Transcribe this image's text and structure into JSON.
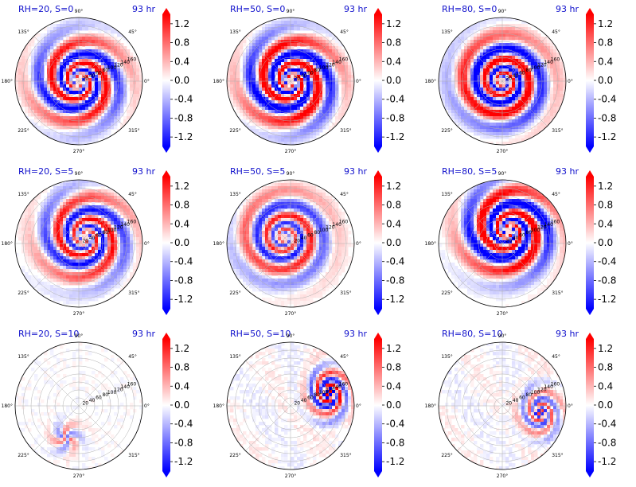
{
  "chart_data": {
    "type": "heatmap",
    "projection": "polar",
    "time_label": "93 hr",
    "angle_ticks": [
      "0°",
      "45°",
      "90°",
      "135°",
      "180°",
      "225°",
      "270°",
      "315°"
    ],
    "radial_ticks": [
      "20",
      "40",
      "60",
      "80",
      "100",
      "120",
      "140",
      "160"
    ],
    "colorbar": {
      "ticks": [
        "1.2",
        "0.8",
        "0.4",
        "0.0",
        "-0.4",
        "-0.8",
        "-1.2"
      ],
      "range": [
        -1.4,
        1.4
      ],
      "colors": [
        "#0000ff",
        "#ffffff",
        "#ff0000"
      ],
      "extend": "both"
    },
    "panels": [
      {
        "title": "RH=20, S=0",
        "row": 0,
        "col": 0,
        "pattern": "spiral",
        "strength": 1.0,
        "arms": 2,
        "offset": [
          0,
          0
        ]
      },
      {
        "title": "RH=50, S=0",
        "row": 0,
        "col": 1,
        "pattern": "spiral",
        "strength": 1.2,
        "arms": 2,
        "offset": [
          0,
          0
        ]
      },
      {
        "title": "RH=80, S=0",
        "row": 0,
        "col": 2,
        "pattern": "spiral",
        "strength": 1.1,
        "arms": 1,
        "offset": [
          0,
          0
        ]
      },
      {
        "title": "RH=20, S=5",
        "row": 1,
        "col": 0,
        "pattern": "spiral",
        "strength": 0.9,
        "arms": 2,
        "offset": [
          0.1,
          0.1
        ]
      },
      {
        "title": "RH=50, S=5",
        "row": 1,
        "col": 1,
        "pattern": "spiral",
        "strength": 0.8,
        "arms": 1,
        "offset": [
          -0.1,
          0.1
        ]
      },
      {
        "title": "RH=80, S=5",
        "row": 1,
        "col": 2,
        "pattern": "spiral",
        "strength": 1.2,
        "arms": 2,
        "offset": [
          0.1,
          0.2
        ]
      },
      {
        "title": "RH=20, S=10",
        "row": 2,
        "col": 0,
        "pattern": "sparse",
        "strength": 0.6,
        "arms": 0,
        "offset": [
          -0.2,
          -0.5
        ]
      },
      {
        "title": "RH=50, S=10",
        "row": 2,
        "col": 1,
        "pattern": "sheared",
        "strength": 1.2,
        "arms": 1,
        "offset": [
          0.6,
          0.2
        ]
      },
      {
        "title": "RH=80, S=10",
        "row": 2,
        "col": 2,
        "pattern": "sheared",
        "strength": 0.8,
        "arms": 1,
        "offset": [
          0.6,
          -0.1
        ]
      }
    ]
  }
}
